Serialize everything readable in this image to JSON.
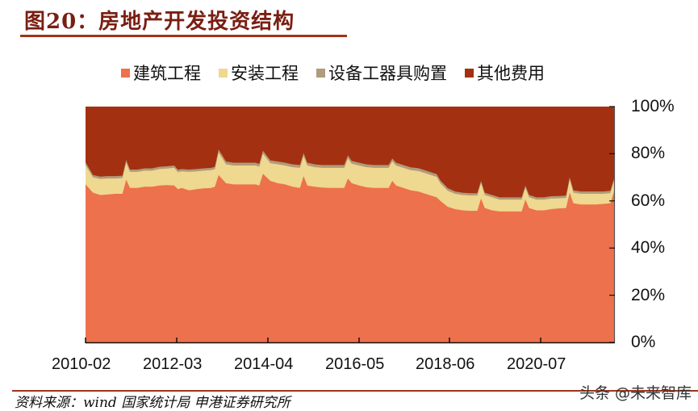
{
  "header": {
    "title": "图20：房地产开发投资结构"
  },
  "legend": [
    {
      "label": "建筑工程",
      "color": "#ed714c"
    },
    {
      "label": "安装工程",
      "color": "#efd88f"
    },
    {
      "label": "设备工器具购置",
      "color": "#b09b7c"
    },
    {
      "label": "其他费用",
      "color": "#a33010"
    }
  ],
  "footer": {
    "source": "资料来源：wind 国家统计局 申港证券研究所",
    "watermark": "头条 @未来智库"
  },
  "chart_data": {
    "type": "area",
    "stacked": true,
    "title": "房地产开发投资结构",
    "xlabel": "",
    "ylabel": "",
    "ylim": [
      0,
      100
    ],
    "y_axis_position": "right",
    "y_ticks": [
      "0%",
      "20%",
      "40%",
      "60%",
      "80%",
      "100%"
    ],
    "x_tick_labels": [
      "2010-02",
      "2012-03",
      "2014-04",
      "2016-05",
      "2018-06",
      "2020-07"
    ],
    "legend_position": "top",
    "grid": false,
    "x": [
      0,
      2,
      4,
      6,
      8,
      10,
      11,
      12,
      14,
      16,
      18,
      20,
      22,
      24,
      25,
      26,
      28,
      30,
      32,
      34,
      35,
      36,
      38,
      40,
      42,
      44,
      46,
      47,
      48,
      50,
      52,
      54,
      56,
      58,
      59,
      60,
      62,
      64,
      66,
      68,
      70,
      71,
      72,
      74,
      76,
      78,
      80,
      82,
      83,
      84,
      86,
      88,
      90,
      92,
      94,
      95,
      96,
      98,
      100,
      102,
      104,
      106,
      107,
      108,
      110,
      112,
      114,
      116,
      118,
      119,
      120,
      122,
      124,
      126,
      128,
      130,
      131,
      132,
      134,
      136,
      138,
      140,
      142,
      143
    ],
    "series": [
      {
        "name": "建筑工程",
        "values": [
          67,
          63.5,
          62.5,
          62.7,
          63,
          63,
          69,
          65.5,
          65.5,
          66,
          66,
          66.5,
          66.7,
          66.5,
          65,
          65.5,
          64.5,
          65,
          65.3,
          65.5,
          66,
          71,
          67.5,
          67,
          67,
          67,
          67,
          66.5,
          71.5,
          68.5,
          67.5,
          67,
          66,
          65.5,
          70.5,
          66.5,
          66,
          65.7,
          65.5,
          65.5,
          65.5,
          69.5,
          67.5,
          66.5,
          65.8,
          65.5,
          65.5,
          65.5,
          68.5,
          66.5,
          65.5,
          64.5,
          64,
          63,
          62,
          61.5,
          60,
          57.5,
          56.5,
          56,
          55.8,
          55.8,
          61,
          57,
          56,
          55.5,
          55.5,
          55.5,
          55.5,
          60.5,
          57,
          56,
          56,
          56.5,
          56.8,
          57,
          63.5,
          59,
          58.5,
          58.5,
          58.5,
          58.7,
          59,
          64
        ]
      },
      {
        "name": "安装工程",
        "values": [
          8.2,
          6.5,
          6.8,
          6.8,
          6.5,
          6.7,
          7.2,
          6.8,
          6.8,
          6.8,
          6.8,
          7,
          7,
          7.5,
          7.2,
          7,
          7.8,
          7.5,
          7.5,
          7.5,
          7.5,
          9.5,
          8,
          8,
          8,
          8,
          8,
          8,
          8.5,
          7.5,
          8,
          8,
          8.3,
          8.5,
          8.5,
          8.5,
          8.3,
          8.3,
          8.5,
          8.5,
          8.5,
          8.5,
          8.3,
          8.5,
          8.5,
          8.5,
          8.5,
          8.5,
          8.3,
          8.5,
          8.5,
          8.5,
          8.7,
          8.7,
          8.7,
          8.7,
          7.5,
          6.8,
          6.5,
          6.5,
          6.5,
          6.5,
          6.5,
          5.5,
          5.5,
          5,
          5,
          5,
          5,
          5,
          4.5,
          4.5,
          4.5,
          4.5,
          4.3,
          4.3,
          5.5,
          4.5,
          4.5,
          4.5,
          4.5,
          4.3,
          4.3,
          4.5
        ]
      },
      {
        "name": "设备工器具购置",
        "values": [
          1.2,
          1.0,
          1.0,
          1.0,
          1.0,
          1.0,
          1.2,
          1.0,
          1.0,
          1.0,
          1.0,
          1.0,
          1.0,
          1.0,
          1.0,
          1.0,
          1.0,
          1.0,
          1.0,
          1.0,
          1.0,
          1.3,
          1.2,
          1.2,
          1.2,
          1.2,
          1.2,
          1.2,
          1.3,
          1.2,
          1.2,
          1.2,
          1.2,
          1.2,
          1.3,
          1.2,
          1.2,
          1.2,
          1.2,
          1.2,
          1.2,
          1.3,
          1.2,
          1.2,
          1.2,
          1.2,
          1.2,
          1.2,
          1.2,
          1.2,
          1.2,
          1.2,
          1.2,
          1.2,
          1.2,
          1.2,
          1.2,
          1.1,
          1.0,
          1.0,
          1.0,
          1.0,
          1.0,
          1.0,
          1.0,
          1.0,
          1.0,
          1.0,
          1.0,
          1.0,
          1.0,
          1.0,
          1.0,
          1.0,
          1.0,
          1.0,
          1.0,
          1.0,
          1.0,
          1.0,
          1.0,
          1.0,
          1.0,
          1.0
        ]
      },
      {
        "name": "其他费用",
        "values": "remainder to 100%"
      }
    ]
  },
  "axis": {
    "y_labels": [
      "100%",
      "80%",
      "60%",
      "40%",
      "20%",
      "0%"
    ],
    "x_labels": [
      "2010-02",
      "2012-03",
      "2014-04",
      "2016-05",
      "2018-06",
      "2020-07"
    ]
  }
}
